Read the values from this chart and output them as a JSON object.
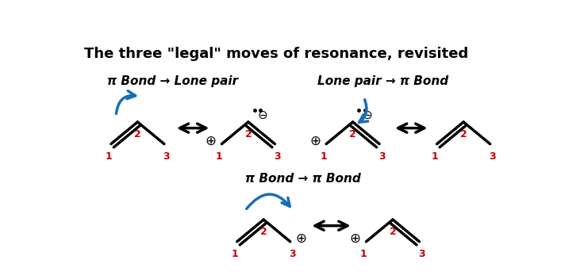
{
  "title": "The three \"legal\" moves of resonance, revisited",
  "title_fontsize": 13,
  "title_weight": "bold",
  "bg_color": "#ffffff",
  "label1": "π Bond → Lone pair",
  "label2": "Lone pair → π Bond",
  "label3": "π Bond → π Bond",
  "red_color": "#cc0000",
  "blue_color": "#1a6eb5",
  "black_color": "#000000",
  "label_fontsize": 11,
  "number_fontsize": 9
}
